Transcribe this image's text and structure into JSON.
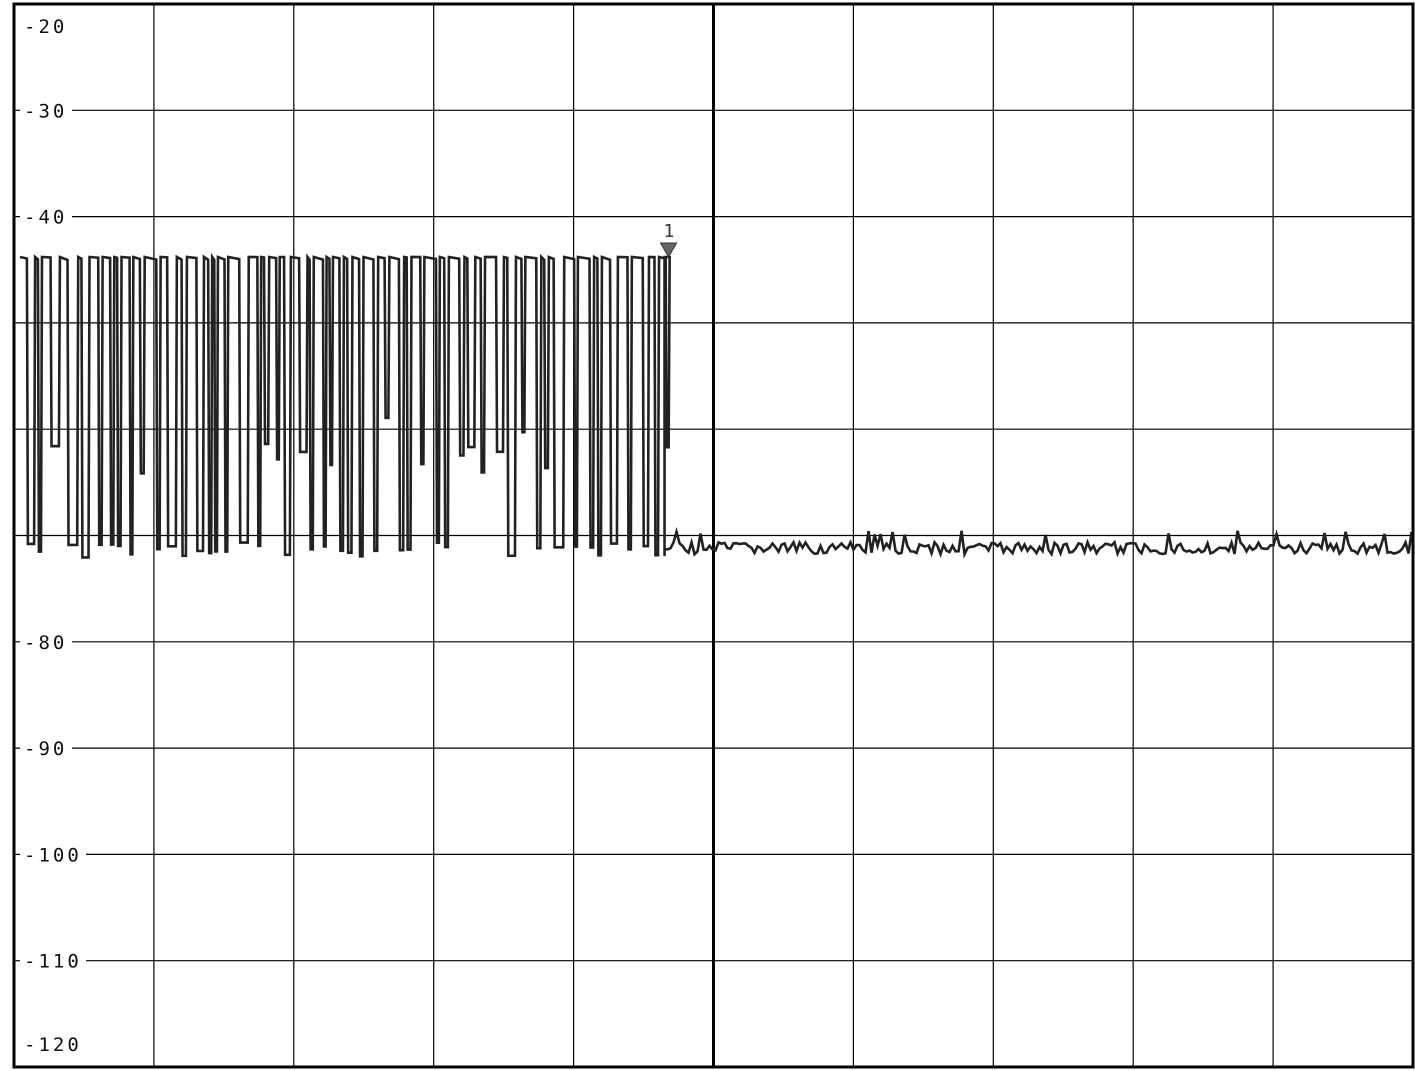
{
  "chart_data": {
    "type": "line",
    "title": "",
    "xlabel": "",
    "ylabel": "",
    "ylim": [
      -120,
      -20
    ],
    "y_ticks": [
      -20,
      -30,
      -40,
      -50,
      -60,
      -70,
      -80,
      -90,
      -100,
      -110,
      -120
    ],
    "y_tick_labels": [
      "-20",
      "-30",
      "-40",
      "",
      "",
      "",
      "-80",
      "-90",
      "-100",
      "-110",
      "-120"
    ],
    "x_divisions": 10,
    "grid": true,
    "colors": {
      "trace": "#222222",
      "grid": "#000000",
      "background": "#ffffff"
    },
    "series": [
      {
        "burst": {
          "x_start": 0.0,
          "x_end": 4.65,
          "high_level": -43.8,
          "low_level": -71.0
        },
        "noise_floor": {
          "x_start": 4.65,
          "x_end": 10.0,
          "mean_level": -71.2,
          "peak_level": -70.0
        }
      }
    ],
    "marker": {
      "label": "1",
      "x": 4.65,
      "y": -43.8
    }
  }
}
